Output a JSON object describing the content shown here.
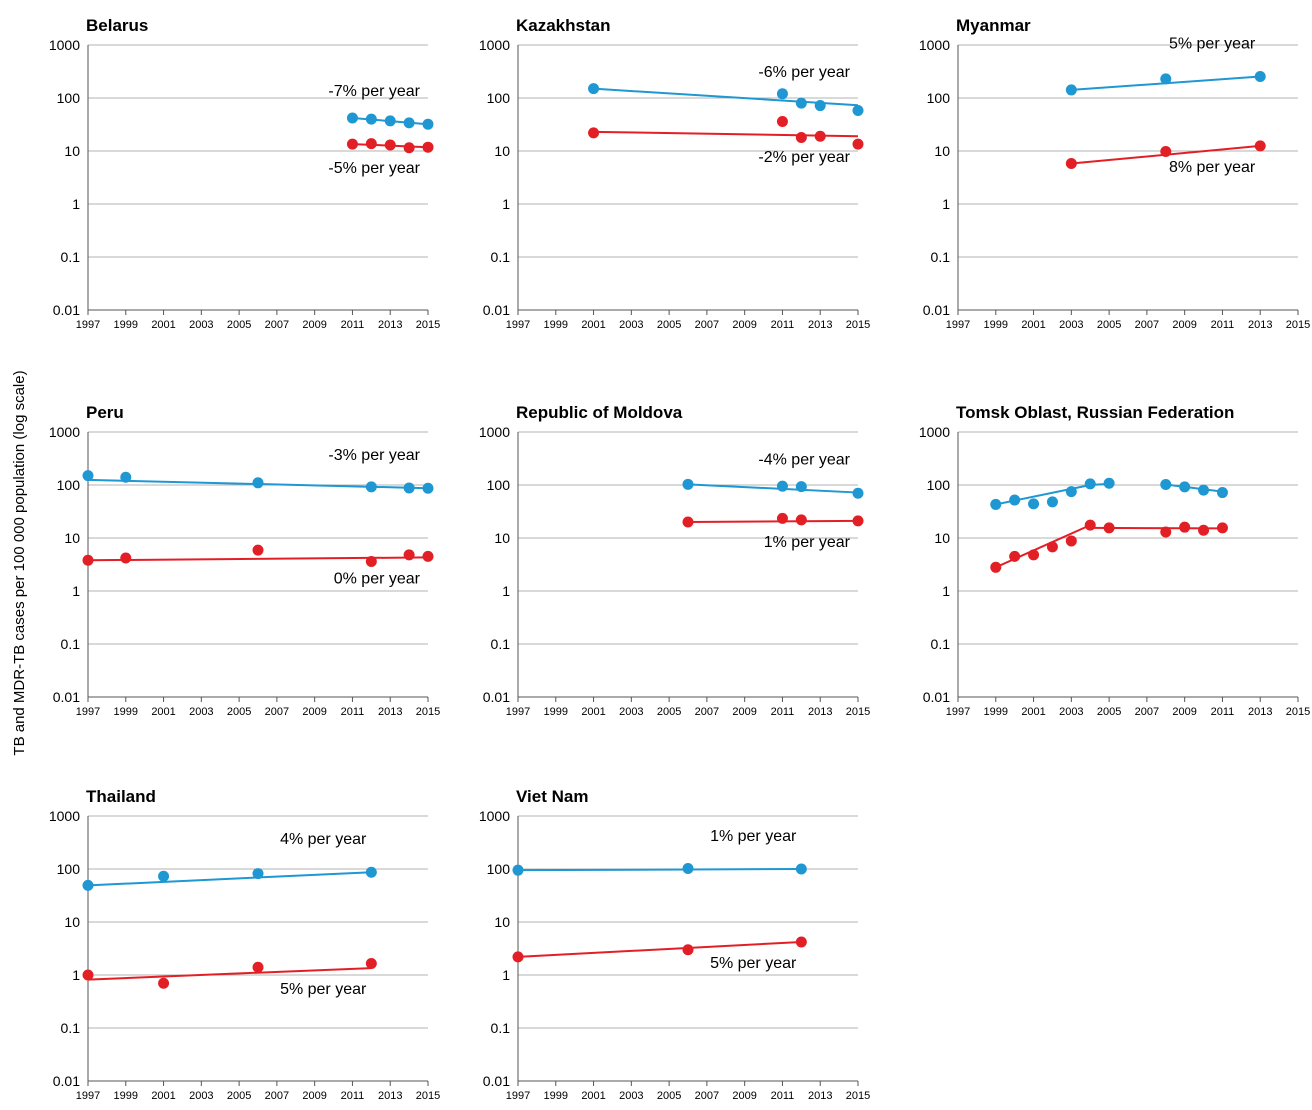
{
  "ylabel": "TB and MDR-TB cases per 100 000 population (log scale)",
  "colors": {
    "tb": "#1e97d2",
    "mdr": "#e31f26",
    "grid": "#b3b3b3",
    "axis": "#555555"
  },
  "y_ticks": [
    {
      "value": 1000,
      "label": "1000"
    },
    {
      "value": 100,
      "label": "100"
    },
    {
      "value": 10,
      "label": "10"
    },
    {
      "value": 1,
      "label": "1"
    },
    {
      "value": 0.1,
      "label": "0.1"
    },
    {
      "value": 0.01,
      "label": "0.01"
    }
  ],
  "x_ticks": [
    "1997",
    "1999",
    "2001",
    "2003",
    "2005",
    "2007",
    "2009",
    "2011",
    "2013",
    "2015"
  ],
  "chart_data": [
    {
      "type": "scatter",
      "title": "Belarus",
      "xlim": [
        1997,
        2015
      ],
      "ylim": [
        0.01,
        1000
      ],
      "yscale": "log",
      "series": [
        {
          "key": "tb",
          "points": [
            [
              2011,
              42
            ],
            [
              2012,
              40
            ],
            [
              2013,
              37
            ],
            [
              2014,
              34
            ],
            [
              2015,
              32
            ]
          ],
          "trend": [
            [
              2011,
              42
            ],
            [
              2015,
              32
            ]
          ],
          "label": "-7% per year",
          "label_position": "above"
        },
        {
          "key": "mdr",
          "points": [
            [
              2011,
              13.5
            ],
            [
              2012,
              13.8
            ],
            [
              2013,
              13
            ],
            [
              2014,
              11.5
            ],
            [
              2015,
              11.8
            ]
          ],
          "trend": [
            [
              2011,
              13.5
            ],
            [
              2015,
              11.8
            ]
          ],
          "label": "-5% per year",
          "label_position": "below"
        }
      ]
    },
    {
      "type": "scatter",
      "title": "Kazakhstan",
      "xlim": [
        1997,
        2015
      ],
      "ylim": [
        0.01,
        1000
      ],
      "yscale": "log",
      "series": [
        {
          "key": "tb",
          "points": [
            [
              2001,
              150
            ],
            [
              2011,
              120
            ],
            [
              2012,
              80
            ],
            [
              2013,
              72
            ],
            [
              2015,
              58
            ]
          ],
          "trend": [
            [
              2001,
              150
            ],
            [
              2015,
              73
            ]
          ],
          "label": "-6% per year",
          "label_position": "above"
        },
        {
          "key": "mdr",
          "points": [
            [
              2001,
              22
            ],
            [
              2011,
              36
            ],
            [
              2012,
              18
            ],
            [
              2013,
              19
            ],
            [
              2015,
              13.5
            ]
          ],
          "trend": [
            [
              2001,
              23
            ],
            [
              2015,
              19
            ]
          ],
          "label": "-2% per year",
          "label_position": "below"
        }
      ]
    },
    {
      "type": "scatter",
      "title": "Myanmar",
      "xlim": [
        1997,
        2015
      ],
      "ylim": [
        0.01,
        1000
      ],
      "yscale": "log",
      "series": [
        {
          "key": "tb",
          "points": [
            [
              2003,
              142
            ],
            [
              2008,
              230
            ],
            [
              2013,
              255
            ]
          ],
          "trend": [
            [
              2003,
              142
            ],
            [
              2013,
              255
            ]
          ],
          "label": "5% per year",
          "label_position": "above"
        },
        {
          "key": "mdr",
          "points": [
            [
              2003,
              5.8
            ],
            [
              2008,
              9.8
            ],
            [
              2013,
              12.5
            ]
          ],
          "trend": [
            [
              2003,
              5.8
            ],
            [
              2013,
              12.5
            ]
          ],
          "label": "8% per year",
          "label_position": "below"
        }
      ]
    },
    {
      "type": "scatter",
      "title": "Peru",
      "xlim": [
        1997,
        2015
      ],
      "ylim": [
        0.01,
        1000
      ],
      "yscale": "log",
      "series": [
        {
          "key": "tb",
          "points": [
            [
              1997,
              150
            ],
            [
              1999,
              140
            ],
            [
              2006,
              110
            ],
            [
              2012,
              92
            ],
            [
              2014,
              88
            ],
            [
              2015,
              87
            ]
          ],
          "trend": [
            [
              1997,
              125
            ],
            [
              2015,
              87
            ]
          ],
          "label": "-3% per year",
          "label_position": "above"
        },
        {
          "key": "mdr",
          "points": [
            [
              1997,
              3.8
            ],
            [
              1999,
              4.2
            ],
            [
              2006,
              5.9
            ],
            [
              2012,
              3.6
            ],
            [
              2014,
              4.8
            ],
            [
              2015,
              4.5
            ]
          ],
          "trend": [
            [
              1997,
              3.8
            ],
            [
              2015,
              4.3
            ]
          ],
          "label": "0% per year",
          "label_position": "below"
        }
      ]
    },
    {
      "type": "scatter",
      "title": "Republic of Moldova",
      "xlim": [
        1997,
        2015
      ],
      "ylim": [
        0.01,
        1000
      ],
      "yscale": "log",
      "series": [
        {
          "key": "tb",
          "points": [
            [
              2006,
              103
            ],
            [
              2011,
              95
            ],
            [
              2012,
              93
            ],
            [
              2015,
              70
            ]
          ],
          "trend": [
            [
              2006,
              103
            ],
            [
              2015,
              72
            ]
          ],
          "label": "-4% per year",
          "label_position": "above"
        },
        {
          "key": "mdr",
          "points": [
            [
              2006,
              20
            ],
            [
              2011,
              23.5
            ],
            [
              2012,
              22
            ],
            [
              2015,
              21
            ]
          ],
          "trend": [
            [
              2006,
              20
            ],
            [
              2015,
              21
            ]
          ],
          "label": "1% per year",
          "label_position": "below"
        }
      ]
    },
    {
      "type": "scatter",
      "title": "Tomsk Oblast, Russian Federation",
      "xlim": [
        1997,
        2015
      ],
      "ylim": [
        0.01,
        1000
      ],
      "yscale": "log",
      "series": [
        {
          "key": "tb",
          "points": [
            [
              1999,
              43
            ],
            [
              2000,
              52
            ],
            [
              2001,
              44
            ],
            [
              2002,
              48
            ],
            [
              2003,
              75
            ],
            [
              2004,
              105
            ],
            [
              2005,
              108
            ],
            [
              2008,
              102
            ],
            [
              2009,
              92
            ],
            [
              2010,
              80
            ],
            [
              2011,
              72
            ]
          ],
          "trends": [
            [
              [
                1999,
                43
              ],
              [
                2004,
                100
              ]
            ],
            [
              [
                2004,
                100
              ],
              [
                2005,
                105
              ]
            ],
            [
              [
                2008,
                102
              ],
              [
                2011,
                75
              ]
            ]
          ]
        },
        {
          "key": "mdr",
          "points": [
            [
              1999,
              2.8
            ],
            [
              2000,
              4.5
            ],
            [
              2001,
              4.8
            ],
            [
              2002,
              6.8
            ],
            [
              2003,
              8.8
            ],
            [
              2004,
              17.5
            ],
            [
              2005,
              15.5
            ],
            [
              2008,
              13
            ],
            [
              2009,
              16
            ],
            [
              2010,
              14
            ],
            [
              2011,
              15.5
            ]
          ],
          "trends": [
            [
              [
                1999,
                2.8
              ],
              [
                2004,
                17.5
              ]
            ],
            [
              [
                2004,
                15.5
              ],
              [
                2011,
                15.2
              ]
            ]
          ]
        }
      ]
    },
    {
      "type": "scatter",
      "title": "Thailand",
      "xlim": [
        1997,
        2015
      ],
      "ylim": [
        0.01,
        1000
      ],
      "yscale": "log",
      "series": [
        {
          "key": "tb",
          "points": [
            [
              1997,
              49
            ],
            [
              2001,
              73
            ],
            [
              2006,
              82
            ],
            [
              2012,
              87
            ]
          ],
          "trend": [
            [
              1997,
              49
            ],
            [
              2012,
              87
            ]
          ],
          "label": "4% per year",
          "label_position": "above"
        },
        {
          "key": "mdr",
          "points": [
            [
              1997,
              1.0
            ],
            [
              2001,
              0.7
            ],
            [
              2006,
              1.4
            ],
            [
              2012,
              1.65
            ]
          ],
          "trend": [
            [
              1997,
              0.82
            ],
            [
              2012,
              1.35
            ]
          ],
          "label": "5% per year",
          "label_position": "below"
        }
      ]
    },
    {
      "type": "scatter",
      "title": "Viet Nam",
      "xlim": [
        1997,
        2015
      ],
      "ylim": [
        0.01,
        1000
      ],
      "yscale": "log",
      "series": [
        {
          "key": "tb",
          "points": [
            [
              1997,
              95
            ],
            [
              2006,
              102
            ],
            [
              2012,
              100
            ]
          ],
          "trend": [
            [
              1997,
              95
            ],
            [
              2012,
              100
            ]
          ],
          "label": "1% per year",
          "label_position": "above"
        },
        {
          "key": "mdr",
          "points": [
            [
              1997,
              2.2
            ],
            [
              2006,
              3.0
            ],
            [
              2012,
              4.2
            ]
          ],
          "trend": [
            [
              1997,
              2.2
            ],
            [
              2012,
              4.2
            ]
          ],
          "label": "5% per year",
          "label_position": "below"
        }
      ]
    }
  ]
}
